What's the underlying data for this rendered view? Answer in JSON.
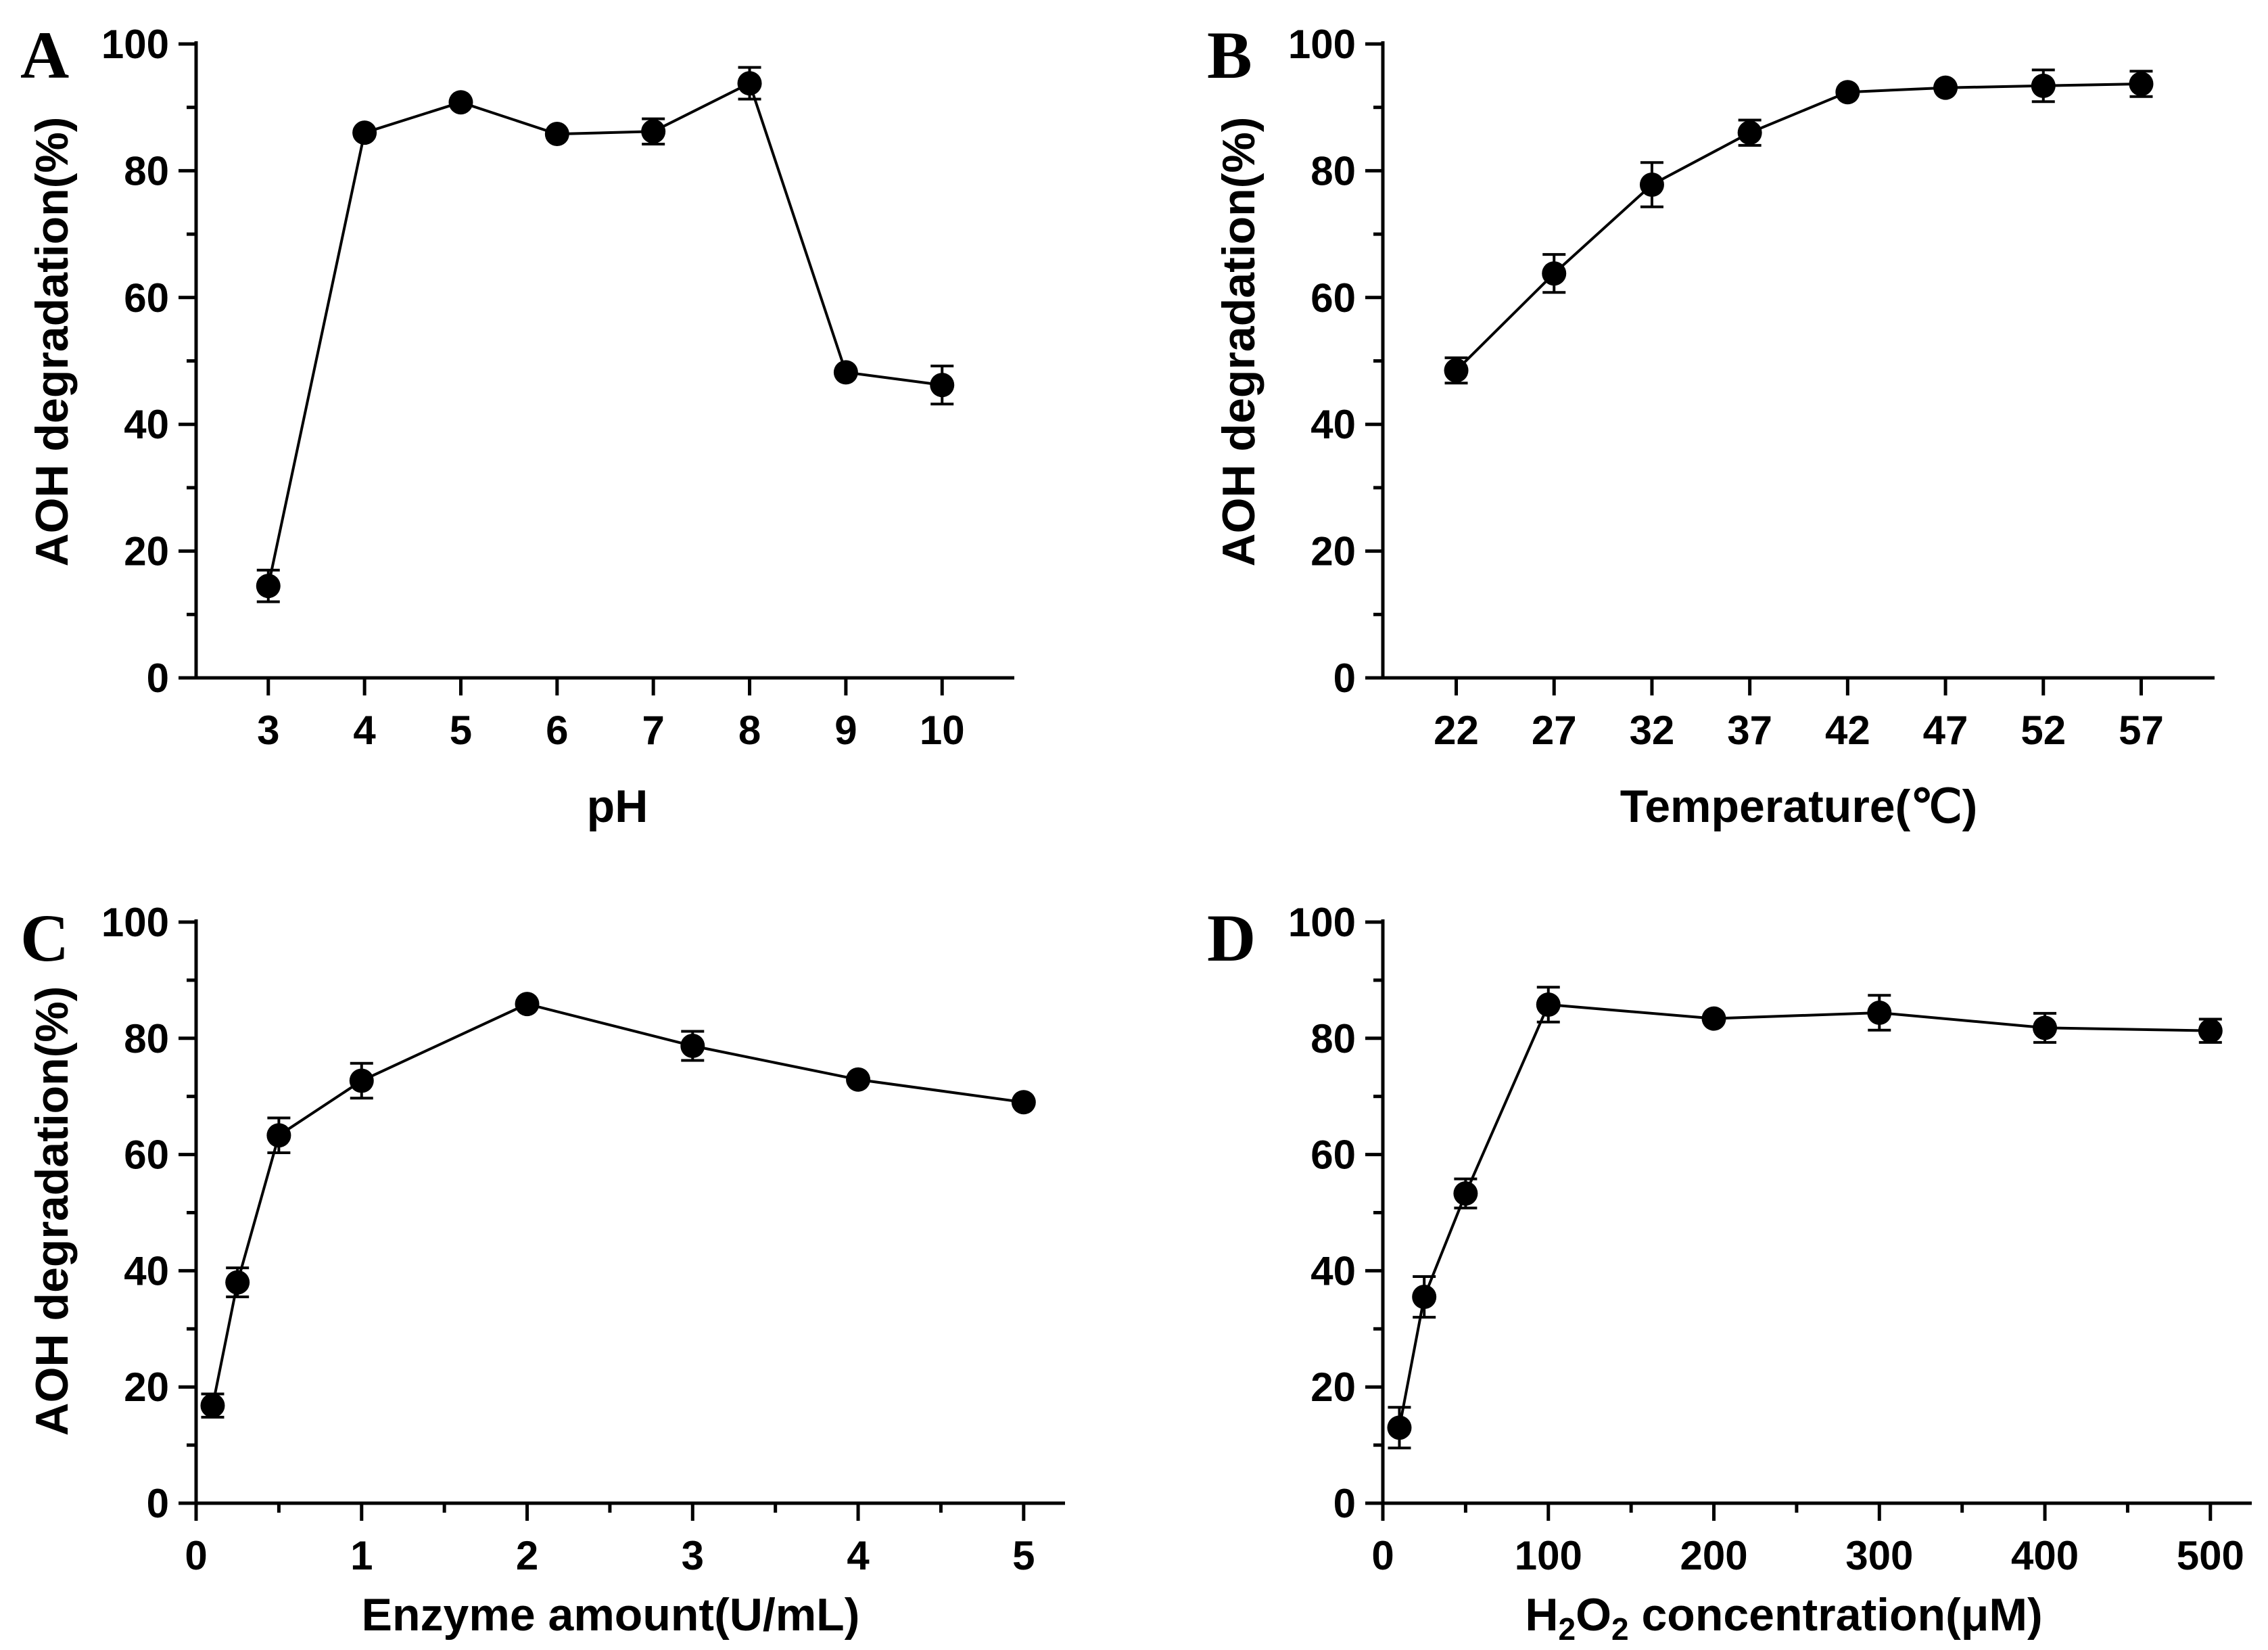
{
  "chart_data": [
    {
      "panel": "A",
      "type": "line",
      "title": "",
      "xlabel": "pH",
      "ylabel": "AOH degradation(%)",
      "x_scale": "categorical",
      "x": [
        3,
        4,
        5,
        6,
        7,
        8,
        9,
        10
      ],
      "x_ticks": [
        "3",
        "4",
        "5",
        "6",
        "7",
        "8",
        "9",
        "10"
      ],
      "y_ticks": [
        "0",
        "20",
        "40",
        "60",
        "80",
        "100"
      ],
      "ylim": [
        0,
        100
      ],
      "series": [
        {
          "values": [
            14.5,
            86.0,
            90.8,
            85.8,
            86.2,
            93.8,
            48.2,
            46.2
          ],
          "errors": [
            2.5,
            0.0,
            0.0,
            0.0,
            2.0,
            2.5,
            0.0,
            3.0
          ]
        }
      ],
      "marker": "filled-circle",
      "color": "#000000"
    },
    {
      "panel": "B",
      "type": "line",
      "title": "",
      "xlabel": "Temperature(℃)",
      "ylabel": "AOH degradation(%)",
      "x_scale": "categorical",
      "x": [
        22,
        27,
        32,
        37,
        42,
        47,
        52,
        57
      ],
      "x_ticks": [
        "22",
        "27",
        "32",
        "37",
        "42",
        "47",
        "52",
        "57"
      ],
      "y_ticks": [
        "0",
        "20",
        "40",
        "60",
        "80",
        "100"
      ],
      "ylim": [
        0,
        100
      ],
      "series": [
        {
          "values": [
            48.5,
            63.8,
            77.8,
            86.0,
            92.4,
            93.1,
            93.4,
            93.7
          ],
          "errors": [
            2.0,
            3.0,
            3.5,
            2.0,
            0.0,
            0.0,
            2.5,
            2.0
          ]
        }
      ],
      "marker": "filled-circle",
      "color": "#000000"
    },
    {
      "panel": "C",
      "type": "line",
      "title": "",
      "xlabel": "Enzyme amount(U/mL)",
      "ylabel": "AOH degradation(%)",
      "x_scale": "linear",
      "x": [
        0.1,
        0.25,
        0.5,
        1,
        2,
        3,
        4,
        5
      ],
      "x_ticks": [
        "0",
        "1",
        "2",
        "3",
        "4",
        "5"
      ],
      "x_tick_values": [
        0,
        1,
        2,
        3,
        4,
        5
      ],
      "xlim": [
        0,
        5.25
      ],
      "y_ticks": [
        "0",
        "20",
        "40",
        "60",
        "80",
        "100"
      ],
      "ylim": [
        0,
        100
      ],
      "series": [
        {
          "values": [
            16.8,
            38.0,
            63.3,
            72.7,
            85.9,
            78.7,
            72.9,
            69.0
          ],
          "errors": [
            2.0,
            2.5,
            3.0,
            3.0,
            0.0,
            2.5,
            0.0,
            0.0
          ]
        }
      ],
      "marker": "filled-circle",
      "color": "#000000"
    },
    {
      "panel": "D",
      "type": "line",
      "title": "",
      "xlabel": "H2O2 concentration(μM)",
      "ylabel": "AOH degradation(%)",
      "x_scale": "linear",
      "x": [
        10,
        25,
        50,
        100,
        200,
        300,
        400,
        500
      ],
      "x_ticks": [
        "0",
        "100",
        "200",
        "300",
        "400",
        "500"
      ],
      "x_tick_values": [
        0,
        100,
        200,
        300,
        400,
        500
      ],
      "xlim": [
        0,
        525
      ],
      "y_ticks": [
        "0",
        "20",
        "40",
        "60",
        "80",
        "100"
      ],
      "ylim": [
        0,
        100
      ],
      "series": [
        {
          "values": [
            13.0,
            35.5,
            53.3,
            85.8,
            83.4,
            84.4,
            81.8,
            81.3
          ],
          "errors": [
            3.5,
            3.5,
            2.5,
            3.0,
            0.0,
            3.0,
            2.5,
            2.0
          ]
        }
      ],
      "marker": "filled-circle",
      "color": "#000000"
    }
  ]
}
